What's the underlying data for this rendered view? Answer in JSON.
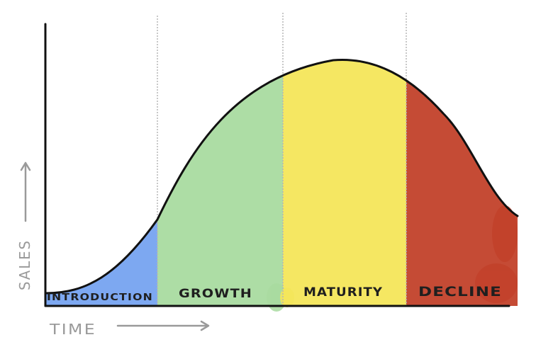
{
  "diagram": {
    "x_axis_label": "TIME",
    "y_axis_label": "SALES",
    "stages": [
      {
        "name": "introduction",
        "label": "INTRODUCTION",
        "color": "#6f9ff0"
      },
      {
        "name": "growth",
        "label": "GROWTH",
        "color": "#a9dba0"
      },
      {
        "name": "maturity",
        "label": "MATURITY",
        "color": "#f4e65a"
      },
      {
        "name": "decline",
        "label": "DECLINE",
        "color": "#c2412a"
      }
    ],
    "colors": {
      "curve": "#111111",
      "axes": "#111111",
      "divider": "#b5b5b5",
      "axis_text": "#9a9a9a"
    }
  }
}
